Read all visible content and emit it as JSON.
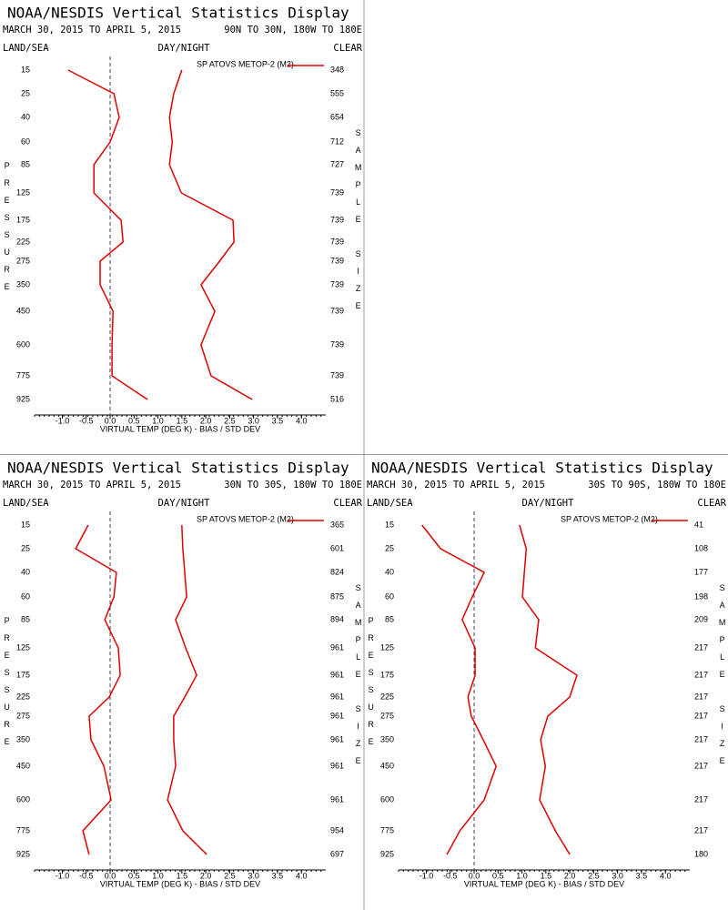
{
  "chart_data": [
    {
      "type": "line",
      "title": "NOAA/NESDIS Vertical Statistics Display",
      "subtitle": "MARCH 30, 2015 TO APRIL 5, 2015",
      "region": "90N TO 30N, 180W TO 180E",
      "left_label": "LAND/SEA",
      "center_label": "DAY/NIGHT",
      "right_label": "CLEAR",
      "ylabel": "PRESSURE",
      "y2label": "SAMPLE SIZE",
      "xlabel": "VIRTUAL TEMP (DEG K) - BIAS / STD DEV",
      "categories": [
        15,
        25,
        40,
        60,
        85,
        125,
        175,
        225,
        275,
        350,
        450,
        600,
        775,
        925
      ],
      "series": [
        {
          "name": "SP ATOVS METOP-2 (M2)",
          "color": "#e00000",
          "bias": [
            -0.88,
            0.08,
            0.19,
            0.0,
            -0.34,
            -0.34,
            0.23,
            0.27,
            -0.21,
            -0.21,
            0.06,
            0.04,
            0.04,
            0.78
          ],
          "std_dev": [
            1.5,
            1.33,
            1.24,
            1.3,
            1.24,
            1.49,
            2.57,
            2.59,
            2.29,
            1.9,
            2.19,
            1.9,
            2.11,
            2.97
          ]
        }
      ],
      "sample_size": [
        348,
        555,
        654,
        712,
        727,
        739,
        739,
        739,
        739,
        739,
        739,
        739,
        739,
        516
      ],
      "xlim": [
        -1.58,
        4.51
      ],
      "xticks": [
        {
          "value": -1,
          "label": "-1.0"
        },
        -0.5,
        {
          "value": 0,
          "label": "0.0"
        },
        0.5,
        {
          "value": 1,
          "label": "1.0"
        },
        1.5,
        {
          "value": 2,
          "label": "2.0"
        },
        2.5,
        {
          "value": 3,
          "label": "3.0"
        },
        3.5,
        {
          "value": 4,
          "label": "4.0"
        }
      ]
    },
    {
      "type": "line",
      "title": "NOAA/NESDIS Vertical Statistics Display",
      "subtitle": "MARCH 30, 2015 TO APRIL 5, 2015",
      "region": "30N TO 30S, 180W TO 180E",
      "left_label": "LAND/SEA",
      "center_label": "DAY/NIGHT",
      "right_label": "CLEAR",
      "ylabel": "PRESSURE",
      "y2label": "SAMPLE SIZE",
      "xlabel": "VIRTUAL TEMP (DEG K) - BIAS / STD DEV",
      "categories": [
        15,
        25,
        40,
        60,
        85,
        125,
        175,
        225,
        275,
        350,
        450,
        600,
        775,
        925
      ],
      "series": [
        {
          "name": "SP ATOVS METOP-2 (M2)",
          "color": "#e00000",
          "bias": [
            -0.46,
            -0.72,
            0.13,
            0.08,
            -0.11,
            0.17,
            0.21,
            -0.02,
            -0.44,
            -0.4,
            -0.13,
            0.02,
            -0.57,
            -0.44
          ],
          "std_dev": [
            1.5,
            1.52,
            1.56,
            1.6,
            1.37,
            1.58,
            1.81,
            1.56,
            1.33,
            1.33,
            1.37,
            1.2,
            1.52,
            2.02
          ]
        }
      ],
      "sample_size": [
        365,
        601,
        824,
        875,
        894,
        961,
        961,
        961,
        961,
        961,
        961,
        961,
        954,
        697
      ],
      "xlim": [
        -1.58,
        4.51
      ],
      "xticks": [
        {
          "value": -1,
          "label": "-1.0"
        },
        -0.5,
        {
          "value": 0,
          "label": "0.0"
        },
        0.5,
        {
          "value": 1,
          "label": "1.0"
        },
        1.5,
        {
          "value": 2,
          "label": "2.0"
        },
        2.5,
        {
          "value": 3,
          "label": "3.0"
        },
        3.5,
        {
          "value": 4,
          "label": "4.0"
        }
      ]
    },
    {
      "type": "line",
      "title": "NOAA/NESDIS Vertical Statistics Display",
      "subtitle": "MARCH 30, 2015 TO APRIL 5, 2015",
      "region": "30S TO 90S, 180W TO 180E",
      "left_label": "LAND/SEA",
      "center_label": "DAY/NIGHT",
      "right_label": "CLEAR",
      "ylabel": "PRESSURE",
      "y2label": "SAMPLE SIZE",
      "xlabel": "VIRTUAL TEMP (DEG K) - BIAS / STD DEV",
      "categories": [
        15,
        25,
        40,
        60,
        85,
        125,
        175,
        225,
        275,
        350,
        450,
        600,
        775,
        925
      ],
      "series": [
        {
          "name": "SP ATOVS METOP-2 (M2)",
          "color": "#e00000",
          "bias": [
            -1.09,
            -0.7,
            0.21,
            -0.04,
            -0.25,
            0.02,
            0.02,
            -0.13,
            -0.06,
            0.19,
            0.46,
            0.21,
            -0.3,
            -0.57
          ],
          "std_dev": [
            0.95,
            1.09,
            1.05,
            1.01,
            1.35,
            1.28,
            2.15,
            2.0,
            1.54,
            1.39,
            1.49,
            1.37,
            1.7,
            2.0
          ]
        }
      ],
      "sample_size": [
        41,
        108,
        177,
        198,
        209,
        217,
        217,
        217,
        217,
        217,
        217,
        217,
        217,
        180
      ],
      "xlim": [
        -1.58,
        4.51
      ],
      "xticks": [
        {
          "value": -1,
          "label": "-1.0"
        },
        -0.5,
        {
          "value": 0,
          "label": "0.0"
        },
        0.5,
        {
          "value": 1,
          "label": "1.0"
        },
        1.5,
        {
          "value": 2,
          "label": "2.0"
        },
        2.5,
        {
          "value": 3,
          "label": "3.0"
        },
        3.5,
        {
          "value": 4,
          "label": "4.0"
        }
      ]
    }
  ]
}
